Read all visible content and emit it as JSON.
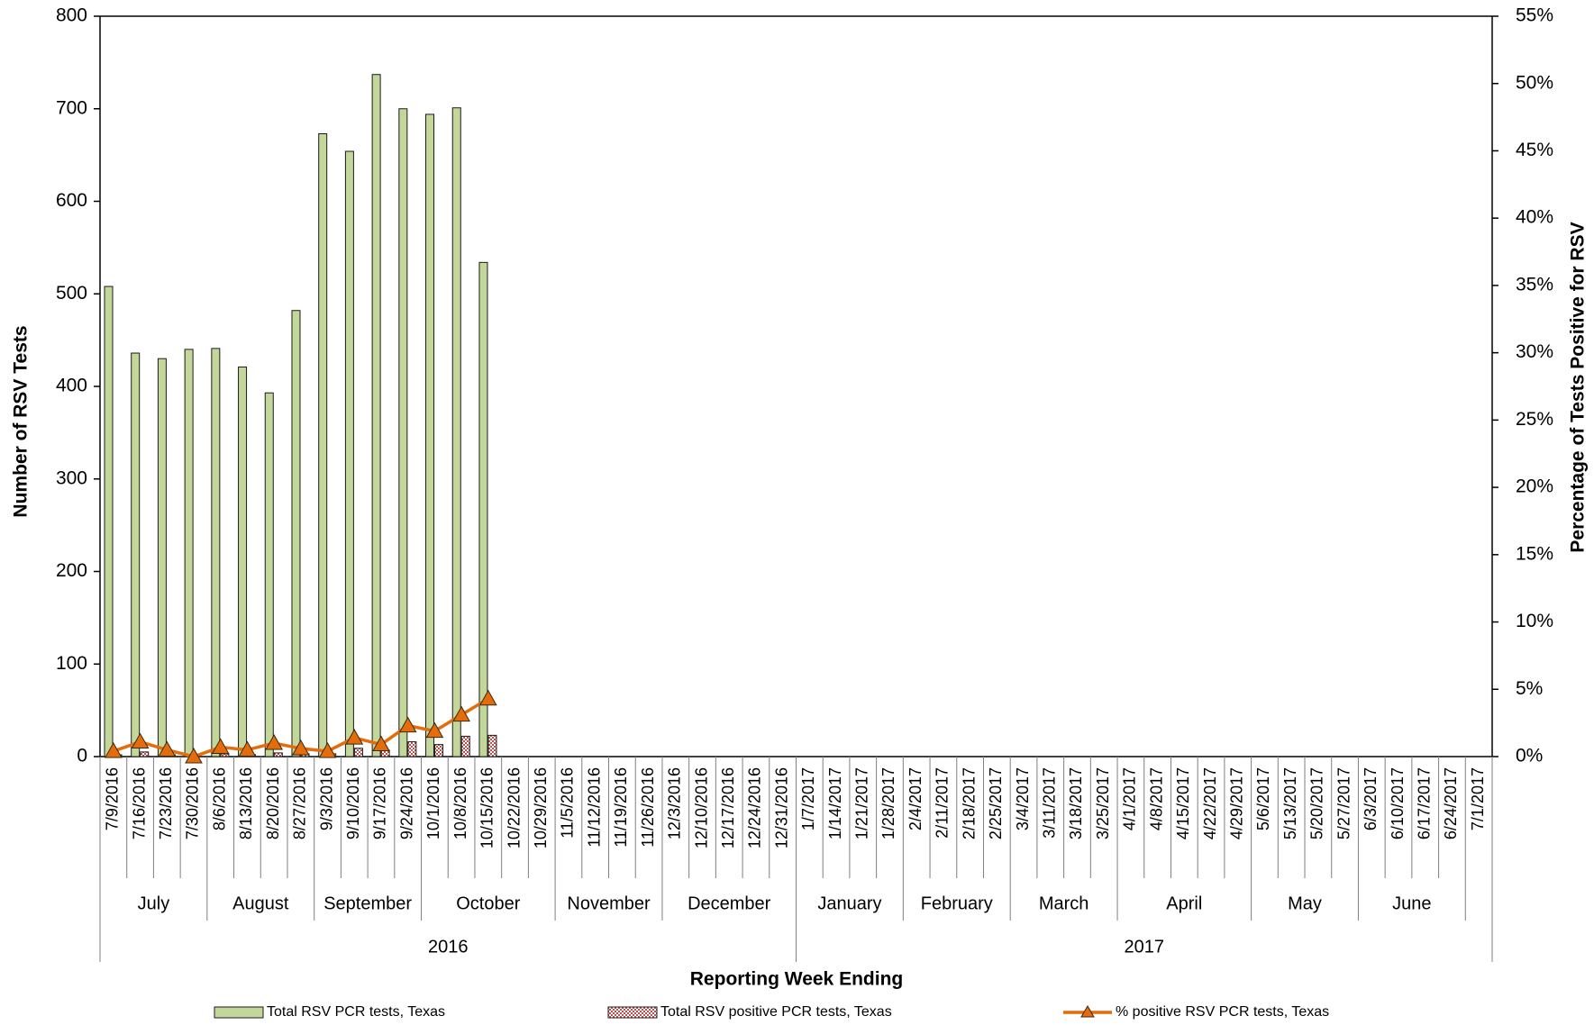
{
  "chart_data": {
    "type": "bar",
    "x_label": "Reporting Week Ending",
    "y_label": "Number of RSV Tests",
    "y2_label": "Percentage of Tests Positive for RSV",
    "categories": [
      "7/9/2016",
      "7/16/2016",
      "7/23/2016",
      "7/30/2016",
      "8/6/2016",
      "8/13/2016",
      "8/20/2016",
      "8/27/2016",
      "9/3/2016",
      "9/10/2016",
      "9/17/2016",
      "9/24/2016",
      "10/1/2016",
      "10/8/2016",
      "10/15/2016",
      "10/22/2016",
      "10/29/2016",
      "11/5/2016",
      "11/12/2016",
      "11/19/2016",
      "11/26/2016",
      "12/3/2016",
      "12/10/2016",
      "12/17/2016",
      "12/24/2016",
      "12/31/2016",
      "1/7/2017",
      "1/14/2017",
      "1/21/2017",
      "1/28/2017",
      "2/4/2017",
      "2/11/2017",
      "2/18/2017",
      "2/25/2017",
      "3/4/2017",
      "3/11/2017",
      "3/18/2017",
      "3/25/2017",
      "4/1/2017",
      "4/8/2017",
      "4/15/2017",
      "4/22/2017",
      "4/29/2017",
      "5/6/2017",
      "5/13/2017",
      "5/20/2017",
      "5/27/2017",
      "6/3/2017",
      "6/10/2017",
      "6/17/2017",
      "6/24/2017",
      "7/1/2017"
    ],
    "months": [
      "July",
      "August",
      "September",
      "October",
      "November",
      "December",
      "January",
      "February",
      "March",
      "April",
      "May",
      "June"
    ],
    "years": [
      "2016",
      "2017"
    ],
    "series": [
      {
        "name": "Total RSV PCR tests, Texas",
        "type": "bar",
        "color": "#c4d79b",
        "values": [
          508,
          436,
          430,
          440,
          441,
          421,
          393,
          482,
          673,
          654,
          737,
          700,
          694,
          701,
          534,
          null,
          null,
          null,
          null,
          null,
          null,
          null,
          null,
          null,
          null,
          null,
          null,
          null,
          null,
          null,
          null,
          null,
          null,
          null,
          null,
          null,
          null,
          null,
          null,
          null,
          null,
          null,
          null,
          null,
          null,
          null,
          null,
          null,
          null,
          null,
          null,
          null
        ]
      },
      {
        "name": "Total RSV positive PCR tests, Texas",
        "type": "bar",
        "color": "#c0504d",
        "values": [
          2,
          5,
          2,
          0,
          3,
          2,
          4,
          3,
          3,
          9,
          7,
          16,
          13,
          22,
          23,
          null,
          null,
          null,
          null,
          null,
          null,
          null,
          null,
          null,
          null,
          null,
          null,
          null,
          null,
          null,
          null,
          null,
          null,
          null,
          null,
          null,
          null,
          null,
          null,
          null,
          null,
          null,
          null,
          null,
          null,
          null,
          null,
          null,
          null,
          null,
          null,
          null
        ]
      },
      {
        "name": "%  positive RSV PCR tests, Texas",
        "type": "line",
        "axis": "y2",
        "color": "#e46c0a",
        "values": [
          0.4,
          1.1,
          0.5,
          0,
          0.7,
          0.5,
          1.0,
          0.6,
          0.4,
          1.4,
          0.9,
          2.3,
          1.9,
          3.1,
          4.3,
          null,
          null,
          null,
          null,
          null,
          null,
          null,
          null,
          null,
          null,
          null,
          null,
          null,
          null,
          null,
          null,
          null,
          null,
          null,
          null,
          null,
          null,
          null,
          null,
          null,
          null,
          null,
          null,
          null,
          null,
          null,
          null,
          null,
          null,
          null,
          null,
          null
        ]
      }
    ],
    "ylim": [
      0,
      800
    ],
    "yticks": [
      0,
      100,
      200,
      300,
      400,
      500,
      600,
      700,
      800
    ],
    "y2lim": [
      0,
      55
    ],
    "y2ticks": [
      {
        "value": 0,
        "label": "0%"
      },
      {
        "value": 5,
        "label": "5%"
      },
      {
        "value": 10,
        "label": "10%"
      },
      {
        "value": 15,
        "label": "15%"
      },
      {
        "value": 20,
        "label": "20%"
      },
      {
        "value": 25,
        "label": "25%"
      },
      {
        "value": 30,
        "label": "30%"
      },
      {
        "value": 35,
        "label": "35%"
      },
      {
        "value": 40,
        "label": "40%"
      },
      {
        "value": 45,
        "label": "45%"
      },
      {
        "value": 50,
        "label": "50%"
      },
      {
        "value": 55,
        "label": "55%"
      }
    ],
    "grid": false,
    "legend": "bottom"
  }
}
